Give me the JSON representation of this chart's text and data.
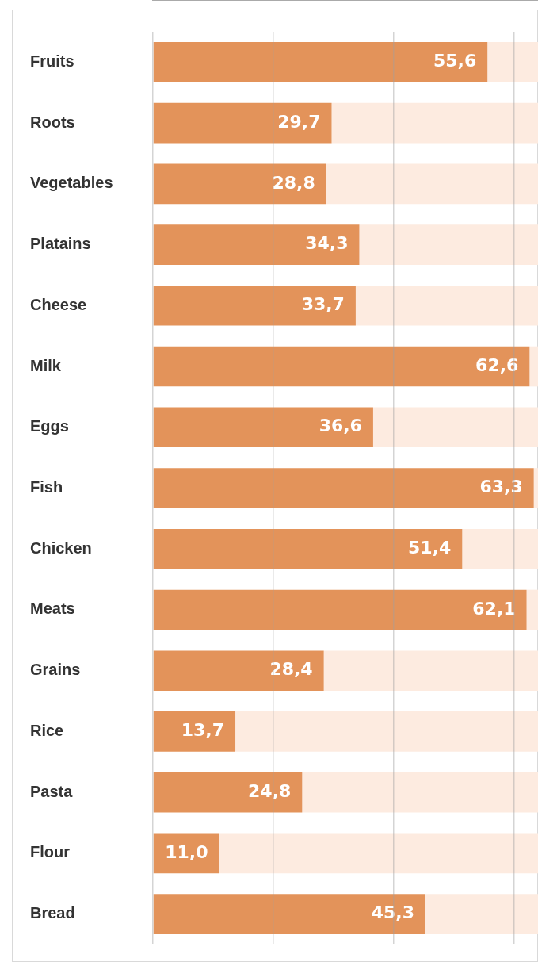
{
  "chart_data": {
    "type": "bar",
    "orientation": "horizontal",
    "stacked": true,
    "categories": [
      "Fruits",
      "Roots",
      "Vegetables",
      "Platains",
      "Cheese",
      "Milk",
      "Eggs",
      "Fish",
      "Chicken",
      "Meats",
      "Grains",
      "Rice",
      "Pasta",
      "Flour",
      "Bread"
    ],
    "series": [
      {
        "color": "#e3935a",
        "values": [
          55.6,
          29.7,
          28.8,
          34.3,
          33.7,
          62.6,
          36.6,
          63.3,
          51.4,
          62.1,
          28.4,
          13.7,
          24.8,
          11.0,
          45.3
        ],
        "value_labels": [
          "55,6",
          "29,7",
          "28,8",
          "34,3",
          "33,7",
          "62,6",
          "36,6",
          "63,3",
          "51,4",
          "62,1",
          "28,4",
          "13,7",
          "24,8",
          "11,0",
          "45,3"
        ]
      },
      {
        "color": "#fdebe0",
        "values": [
          8.4,
          34.3,
          35.2,
          29.7,
          30.3,
          1.4,
          27.4,
          0.7,
          12.6,
          1.9,
          35.6,
          50.3,
          39.2,
          53.0,
          18.7
        ]
      }
    ],
    "xlim": [
      0,
      64
    ],
    "xticks": [
      {
        "value": 0,
        "label": null
      },
      {
        "value": 20,
        "label": null
      },
      {
        "value": 40,
        "label": null
      },
      {
        "value": 60,
        "label": null
      }
    ],
    "tick_labels": "y",
    "grid": "x",
    "legend": false
  }
}
